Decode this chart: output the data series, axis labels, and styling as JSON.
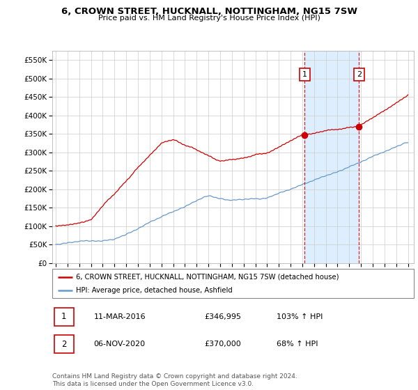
{
  "title": "6, CROWN STREET, HUCKNALL, NOTTINGHAM, NG15 7SW",
  "subtitle": "Price paid vs. HM Land Registry's House Price Index (HPI)",
  "yticks": [
    0,
    50000,
    100000,
    150000,
    200000,
    250000,
    300000,
    350000,
    400000,
    450000,
    500000,
    550000
  ],
  "ytick_labels": [
    "£0",
    "£50K",
    "£100K",
    "£150K",
    "£200K",
    "£250K",
    "£300K",
    "£350K",
    "£400K",
    "£450K",
    "£500K",
    "£550K"
  ],
  "ylim": [
    0,
    575000
  ],
  "xlim_start": 1994.7,
  "xlim_end": 2025.5,
  "xticks": [
    1995,
    1996,
    1997,
    1998,
    1999,
    2000,
    2001,
    2002,
    2003,
    2004,
    2005,
    2006,
    2007,
    2008,
    2009,
    2010,
    2011,
    2012,
    2013,
    2014,
    2015,
    2016,
    2017,
    2018,
    2019,
    2020,
    2021,
    2022,
    2023,
    2024,
    2025
  ],
  "property_color": "#cc0000",
  "hpi_color": "#6699cc",
  "vline_color": "#cc0000",
  "shade_color": "#ddeeff",
  "background_color": "#ffffff",
  "grid_color": "#cccccc",
  "t1_x": 2016.19,
  "t1_price": 346995,
  "t2_x": 2020.84,
  "t2_price": 370000,
  "legend_label1": "6, CROWN STREET, HUCKNALL, NOTTINGHAM, NG15 7SW (detached house)",
  "legend_label2": "HPI: Average price, detached house, Ashfield",
  "footer_text": "Contains HM Land Registry data © Crown copyright and database right 2024.\nThis data is licensed under the Open Government Licence v3.0.",
  "table_rows": [
    {
      "num": "1",
      "date": "11-MAR-2016",
      "price": "£346,995",
      "hpi": "103% ↑ HPI"
    },
    {
      "num": "2",
      "date": "06-NOV-2020",
      "price": "£370,000",
      "hpi": "68% ↑ HPI"
    }
  ]
}
